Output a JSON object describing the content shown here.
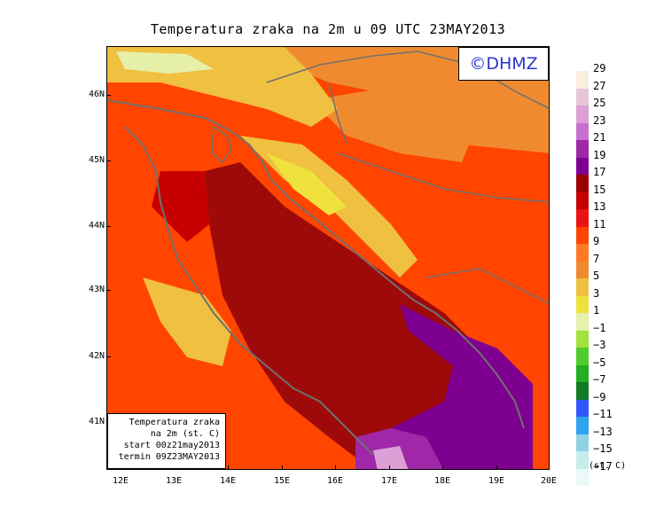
{
  "title": "Temperatura zraka na 2m u 09 UTC 23MAY2013",
  "logo": "©DHMZ",
  "info": {
    "line1": "Temperatura zraka",
    "line2": "na 2m (st. C)",
    "line3": "start 00z21may2013",
    "line4": "termin 09Z23MAY2013"
  },
  "axes": {
    "lon_labels": [
      "12E",
      "13E",
      "14E",
      "15E",
      "16E",
      "17E",
      "18E",
      "19E",
      "20E"
    ],
    "lat_labels": [
      "46N",
      "45N",
      "44N",
      "43N",
      "42N",
      "41N"
    ]
  },
  "legend": {
    "unit": "(st. C)",
    "labels": [
      "29",
      "27",
      "25",
      "23",
      "21",
      "19",
      "17",
      "15",
      "13",
      "11",
      "9",
      "7",
      "5",
      "3",
      "1",
      "−1",
      "−3",
      "−5",
      "−7",
      "−9",
      "−11",
      "−13",
      "−15",
      "−17"
    ],
    "colors": [
      "#fbeee1",
      "#e6c6d8",
      "#dca0d6",
      "#c870d1",
      "#a027a7",
      "#7e0090",
      "#9b0000",
      "#c60000",
      "#ea1212",
      "#ff4500",
      "#ff7a23",
      "#f08a30",
      "#f0c040",
      "#f0e23d",
      "#e6f0a8",
      "#a0e33c",
      "#50cc2c",
      "#22b022",
      "#117a24",
      "#2f58ff",
      "#2fa3ee",
      "#8fd2e3",
      "#c6ecec",
      "#eaf8f8"
    ]
  },
  "colors": {
    "sea": "#9e0a0a",
    "deep_sea": "#8c0090",
    "coast": "#707070",
    "logo_text": "#2a36c9"
  }
}
